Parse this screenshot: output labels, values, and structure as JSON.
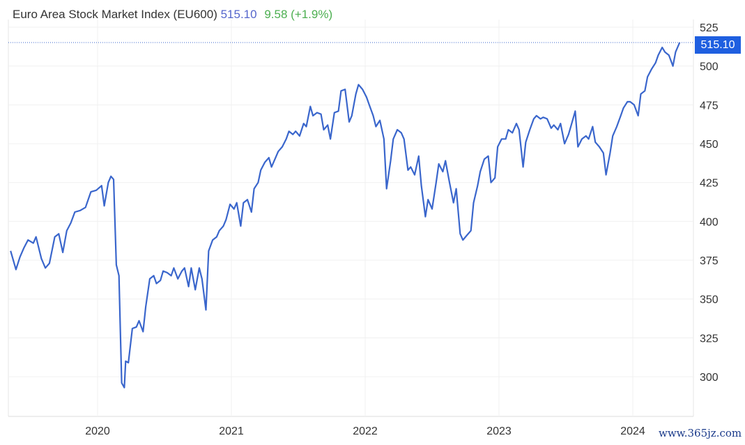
{
  "header": {
    "title": "Euro Area Stock Market Index (EU600)",
    "last": "515.10",
    "change": "9.58 (+1.9%)"
  },
  "price_tag": "515.10",
  "watermark": "www.365jz.com",
  "colors": {
    "line": "#3a66cc",
    "tag": "#1f5fe0",
    "change": "#4caf50",
    "last": "#5566cc"
  },
  "chart_data": {
    "type": "line",
    "title": "Euro Area Stock Market Index (EU600)",
    "xlabel": "",
    "ylabel": "",
    "xlim": [
      2019.35,
      2024.45
    ],
    "ylim": [
      285,
      530
    ],
    "x_ticks": [
      {
        "value": 2020,
        "label": "2020"
      },
      {
        "value": 2021,
        "label": "2021"
      },
      {
        "value": 2022,
        "label": "2022"
      },
      {
        "value": 2023,
        "label": "2023"
      },
      {
        "value": 2024,
        "label": "2024"
      }
    ],
    "y_ticks": [
      300,
      325,
      350,
      375,
      400,
      425,
      450,
      475,
      500,
      525
    ],
    "grid": true,
    "current_value": 515.1,
    "series": [
      {
        "name": "EU600",
        "points": [
          [
            2019.35,
            381
          ],
          [
            2019.39,
            369
          ],
          [
            2019.42,
            377
          ],
          [
            2019.45,
            383
          ],
          [
            2019.48,
            388
          ],
          [
            2019.52,
            386
          ],
          [
            2019.54,
            390
          ],
          [
            2019.58,
            376
          ],
          [
            2019.61,
            370
          ],
          [
            2019.64,
            373
          ],
          [
            2019.68,
            390
          ],
          [
            2019.71,
            392
          ],
          [
            2019.74,
            380
          ],
          [
            2019.77,
            394
          ],
          [
            2019.8,
            399
          ],
          [
            2019.83,
            406
          ],
          [
            2019.87,
            407
          ],
          [
            2019.91,
            409
          ],
          [
            2019.95,
            419
          ],
          [
            2019.99,
            420
          ],
          [
            2020.03,
            423
          ],
          [
            2020.05,
            410
          ],
          [
            2020.08,
            425
          ],
          [
            2020.1,
            429
          ],
          [
            2020.12,
            427
          ],
          [
            2020.14,
            372
          ],
          [
            2020.16,
            365
          ],
          [
            2020.17,
            331
          ],
          [
            2020.18,
            296
          ],
          [
            2020.2,
            293
          ],
          [
            2020.21,
            310
          ],
          [
            2020.23,
            309
          ],
          [
            2020.26,
            331
          ],
          [
            2020.29,
            332
          ],
          [
            2020.31,
            336
          ],
          [
            2020.34,
            329
          ],
          [
            2020.36,
            345
          ],
          [
            2020.39,
            363
          ],
          [
            2020.42,
            365
          ],
          [
            2020.44,
            360
          ],
          [
            2020.47,
            362
          ],
          [
            2020.49,
            368
          ],
          [
            2020.52,
            367
          ],
          [
            2020.55,
            365
          ],
          [
            2020.57,
            370
          ],
          [
            2020.6,
            363
          ],
          [
            2020.63,
            368
          ],
          [
            2020.65,
            370
          ],
          [
            2020.68,
            358
          ],
          [
            2020.7,
            370
          ],
          [
            2020.73,
            356
          ],
          [
            2020.76,
            370
          ],
          [
            2020.78,
            363
          ],
          [
            2020.81,
            343
          ],
          [
            2020.83,
            381
          ],
          [
            2020.86,
            388
          ],
          [
            2020.89,
            390
          ],
          [
            2020.91,
            394
          ],
          [
            2020.94,
            397
          ],
          [
            2020.96,
            401
          ],
          [
            2020.99,
            411
          ],
          [
            2021.02,
            408
          ],
          [
            2021.04,
            412
          ],
          [
            2021.07,
            397
          ],
          [
            2021.09,
            412
          ],
          [
            2021.12,
            414
          ],
          [
            2021.15,
            406
          ],
          [
            2021.17,
            421
          ],
          [
            2021.2,
            425
          ],
          [
            2021.22,
            433
          ],
          [
            2021.25,
            438
          ],
          [
            2021.28,
            441
          ],
          [
            2021.3,
            435
          ],
          [
            2021.33,
            441
          ],
          [
            2021.35,
            445
          ],
          [
            2021.38,
            448
          ],
          [
            2021.41,
            453
          ],
          [
            2021.43,
            458
          ],
          [
            2021.46,
            456
          ],
          [
            2021.48,
            458
          ],
          [
            2021.51,
            455
          ],
          [
            2021.54,
            463
          ],
          [
            2021.56,
            461
          ],
          [
            2021.59,
            474
          ],
          [
            2021.61,
            468
          ],
          [
            2021.64,
            470
          ],
          [
            2021.67,
            469
          ],
          [
            2021.69,
            459
          ],
          [
            2021.72,
            462
          ],
          [
            2021.74,
            453
          ],
          [
            2021.77,
            470
          ],
          [
            2021.8,
            471
          ],
          [
            2021.82,
            484
          ],
          [
            2021.85,
            485
          ],
          [
            2021.88,
            464
          ],
          [
            2021.9,
            468
          ],
          [
            2021.93,
            482
          ],
          [
            2021.95,
            488
          ],
          [
            2021.98,
            485
          ],
          [
            2022.01,
            480
          ],
          [
            2022.03,
            475
          ],
          [
            2022.06,
            468
          ],
          [
            2022.08,
            461
          ],
          [
            2022.11,
            465
          ],
          [
            2022.14,
            453
          ],
          [
            2022.16,
            421
          ],
          [
            2022.19,
            439
          ],
          [
            2022.21,
            453
          ],
          [
            2022.24,
            459
          ],
          [
            2022.27,
            457
          ],
          [
            2022.29,
            453
          ],
          [
            2022.32,
            433
          ],
          [
            2022.34,
            435
          ],
          [
            2022.37,
            430
          ],
          [
            2022.4,
            442
          ],
          [
            2022.42,
            423
          ],
          [
            2022.45,
            403
          ],
          [
            2022.47,
            414
          ],
          [
            2022.5,
            408
          ],
          [
            2022.53,
            425
          ],
          [
            2022.55,
            437
          ],
          [
            2022.58,
            432
          ],
          [
            2022.6,
            439
          ],
          [
            2022.63,
            425
          ],
          [
            2022.66,
            412
          ],
          [
            2022.68,
            421
          ],
          [
            2022.71,
            392
          ],
          [
            2022.73,
            388
          ],
          [
            2022.76,
            391
          ],
          [
            2022.79,
            394
          ],
          [
            2022.81,
            412
          ],
          [
            2022.84,
            423
          ],
          [
            2022.86,
            432
          ],
          [
            2022.89,
            440
          ],
          [
            2022.92,
            442
          ],
          [
            2022.94,
            425
          ],
          [
            2022.97,
            428
          ],
          [
            2022.99,
            448
          ],
          [
            2023.02,
            453
          ],
          [
            2023.05,
            453
          ],
          [
            2023.07,
            459
          ],
          [
            2023.1,
            457
          ],
          [
            2023.13,
            463
          ],
          [
            2023.15,
            459
          ],
          [
            2023.18,
            435
          ],
          [
            2023.2,
            451
          ],
          [
            2023.23,
            459
          ],
          [
            2023.26,
            466
          ],
          [
            2023.28,
            468
          ],
          [
            2023.31,
            466
          ],
          [
            2023.33,
            467
          ],
          [
            2023.36,
            466
          ],
          [
            2023.39,
            460
          ],
          [
            2023.41,
            462
          ],
          [
            2023.44,
            459
          ],
          [
            2023.46,
            463
          ],
          [
            2023.49,
            450
          ],
          [
            2023.52,
            456
          ],
          [
            2023.54,
            462
          ],
          [
            2023.57,
            471
          ],
          [
            2023.59,
            448
          ],
          [
            2023.62,
            453
          ],
          [
            2023.65,
            455
          ],
          [
            2023.67,
            453
          ],
          [
            2023.7,
            461
          ],
          [
            2023.72,
            451
          ],
          [
            2023.75,
            448
          ],
          [
            2023.78,
            444
          ],
          [
            2023.8,
            430
          ],
          [
            2023.83,
            444
          ],
          [
            2023.85,
            455
          ],
          [
            2023.88,
            461
          ],
          [
            2023.91,
            468
          ],
          [
            2023.93,
            473
          ],
          [
            2023.96,
            477
          ],
          [
            2023.98,
            477
          ],
          [
            2024.01,
            475
          ],
          [
            2024.04,
            468
          ],
          [
            2024.06,
            482
          ],
          [
            2024.09,
            484
          ],
          [
            2024.11,
            493
          ],
          [
            2024.14,
            498
          ],
          [
            2024.17,
            502
          ],
          [
            2024.19,
            507
          ],
          [
            2024.22,
            512
          ],
          [
            2024.24,
            509
          ],
          [
            2024.27,
            507
          ],
          [
            2024.3,
            500
          ],
          [
            2024.32,
            509
          ],
          [
            2024.35,
            515.1
          ]
        ]
      }
    ]
  }
}
